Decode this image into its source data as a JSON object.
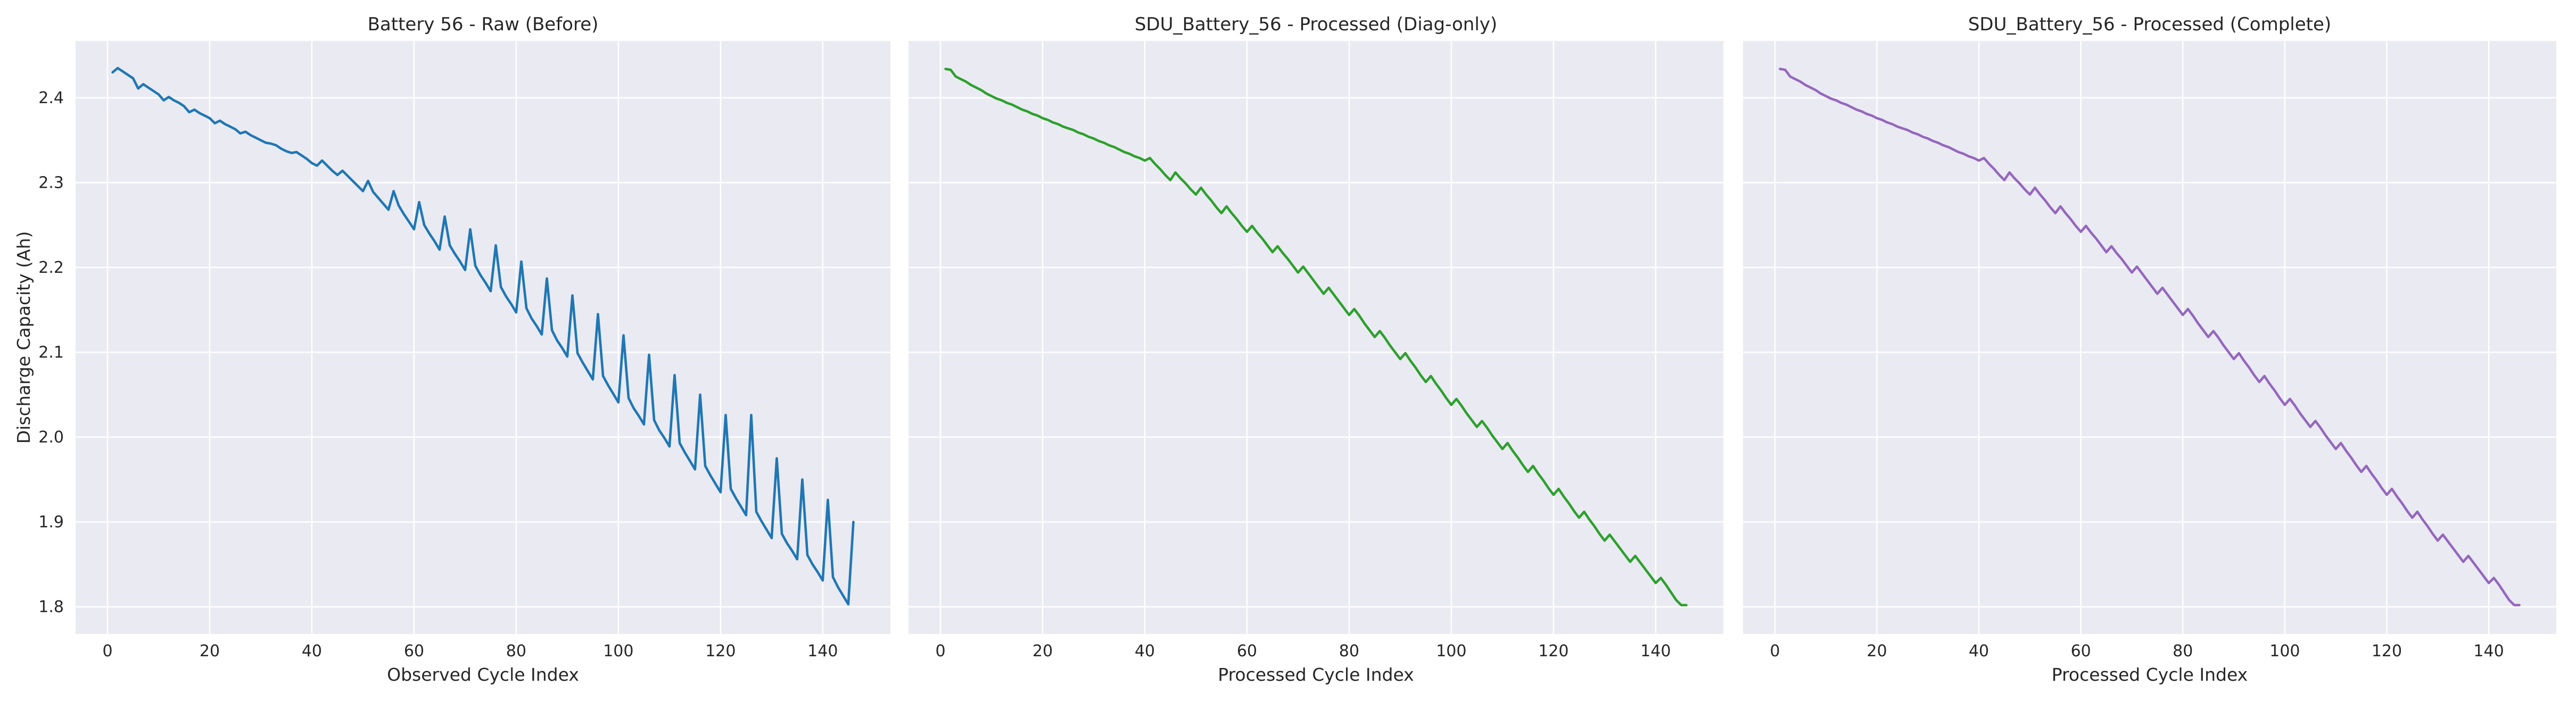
{
  "chart_data": [
    {
      "type": "line",
      "title": "Battery 56 - Raw (Before)",
      "xlabel": "Observed Cycle Index",
      "ylabel": "Discharge Capacity (Ah)",
      "color": "#1f77b4",
      "grid": true,
      "xlim": [
        -6.25,
        153.25
      ],
      "xticks": [
        0,
        20,
        40,
        60,
        80,
        100,
        120,
        140
      ],
      "ylim": [
        1.768,
        2.467
      ],
      "yticks": [
        1.8,
        1.9,
        {
          "value": 2.0,
          "label": "2.0"
        },
        2.1,
        2.2,
        2.3,
        2.4
      ],
      "x": [
        1,
        2,
        3,
        4,
        5,
        6,
        7,
        8,
        9,
        10,
        11,
        12,
        13,
        14,
        15,
        16,
        17,
        18,
        19,
        20,
        21,
        22,
        23,
        24,
        25,
        26,
        27,
        28,
        29,
        30,
        31,
        32,
        33,
        34,
        35,
        36,
        37,
        38,
        39,
        40,
        41,
        42,
        43,
        44,
        45,
        46,
        47,
        48,
        49,
        50,
        51,
        52,
        53,
        54,
        55,
        56,
        57,
        58,
        59,
        60,
        61,
        62,
        63,
        64,
        65,
        66,
        67,
        68,
        69,
        70,
        71,
        72,
        73,
        74,
        75,
        76,
        77,
        78,
        79,
        80,
        81,
        82,
        83,
        84,
        85,
        86,
        87,
        88,
        89,
        90,
        91,
        92,
        93,
        94,
        95,
        96,
        97,
        98,
        99,
        100,
        101,
        102,
        103,
        104,
        105,
        106,
        107,
        108,
        109,
        110,
        111,
        112,
        113,
        114,
        115,
        116,
        117,
        118,
        119,
        120,
        121,
        122,
        123,
        124,
        125,
        126,
        127,
        128,
        129,
        130,
        131,
        132,
        133,
        134,
        135,
        136,
        137,
        138,
        139,
        140,
        141,
        142,
        143,
        144,
        145,
        146
      ],
      "values": [
        2.43,
        2.435,
        2.431,
        2.427,
        2.423,
        2.411,
        2.416,
        2.412,
        2.408,
        2.404,
        2.397,
        2.401,
        2.397,
        2.394,
        2.39,
        2.383,
        2.386,
        2.382,
        2.379,
        2.376,
        2.37,
        2.373,
        2.369,
        2.366,
        2.363,
        2.358,
        2.36,
        2.356,
        2.353,
        2.35,
        2.347,
        2.346,
        2.344,
        2.34,
        2.337,
        2.335,
        2.336,
        2.332,
        2.328,
        2.323,
        2.32,
        2.326,
        2.32,
        2.314,
        2.309,
        2.314,
        2.308,
        2.302,
        2.296,
        2.29,
        2.302,
        2.289,
        2.282,
        2.275,
        2.268,
        2.29,
        2.273,
        2.263,
        2.254,
        2.245,
        2.277,
        2.25,
        2.24,
        2.231,
        2.221,
        2.26,
        2.226,
        2.216,
        2.207,
        2.197,
        2.245,
        2.202,
        2.191,
        2.182,
        2.172,
        2.226,
        2.177,
        2.166,
        2.157,
        2.147,
        2.207,
        2.152,
        2.14,
        2.131,
        2.121,
        2.187,
        2.126,
        2.114,
        2.105,
        2.095,
        2.167,
        2.099,
        2.088,
        2.078,
        2.068,
        2.145,
        2.072,
        2.061,
        2.051,
        2.041,
        2.12,
        2.046,
        2.034,
        2.025,
        2.015,
        2.097,
        2.02,
        2.008,
        1.999,
        1.989,
        2.073,
        1.993,
        1.982,
        1.972,
        1.962,
        2.05,
        1.966,
        1.955,
        1.945,
        1.935,
        2.026,
        1.939,
        1.928,
        1.918,
        1.908,
        2.026,
        1.912,
        1.901,
        1.891,
        1.881,
        1.975,
        1.886,
        1.875,
        1.866,
        1.856,
        1.95,
        1.861,
        1.85,
        1.841,
        1.831,
        1.926,
        1.835,
        1.823,
        1.813,
        1.803,
        1.9
      ]
    },
    {
      "type": "line",
      "title": "SDU_Battery_56 - Processed (Diag-only)",
      "xlabel": "Processed Cycle Index",
      "color": "#2ca02c",
      "grid": true,
      "xlim": [
        -6.25,
        153.25
      ],
      "xticks": [
        0,
        20,
        40,
        60,
        80,
        100,
        120,
        140
      ],
      "ylim": [
        1.768,
        2.467
      ],
      "yticks": [
        1.8,
        1.9,
        2.0,
        2.1,
        2.2,
        2.3,
        2.4
      ],
      "x": [
        1,
        2,
        3,
        4,
        5,
        6,
        7,
        8,
        9,
        10,
        11,
        12,
        13,
        14,
        15,
        16,
        17,
        18,
        19,
        20,
        21,
        22,
        23,
        24,
        25,
        26,
        27,
        28,
        29,
        30,
        31,
        32,
        33,
        34,
        35,
        36,
        37,
        38,
        39,
        40,
        41,
        42,
        43,
        44,
        45,
        46,
        47,
        48,
        49,
        50,
        51,
        52,
        53,
        54,
        55,
        56,
        57,
        58,
        59,
        60,
        61,
        62,
        63,
        64,
        65,
        66,
        67,
        68,
        69,
        70,
        71,
        72,
        73,
        74,
        75,
        76,
        77,
        78,
        79,
        80,
        81,
        82,
        83,
        84,
        85,
        86,
        87,
        88,
        89,
        90,
        91,
        92,
        93,
        94,
        95,
        96,
        97,
        98,
        99,
        100,
        101,
        102,
        103,
        104,
        105,
        106,
        107,
        108,
        109,
        110,
        111,
        112,
        113,
        114,
        115,
        116,
        117,
        118,
        119,
        120,
        121,
        122,
        123,
        124,
        125,
        126,
        127,
        128,
        129,
        130,
        131,
        132,
        133,
        134,
        135,
        136,
        137,
        138,
        139,
        140,
        141,
        142,
        143,
        144,
        145,
        146
      ],
      "values": [
        2.434,
        2.433,
        2.425,
        2.422,
        2.419,
        2.415,
        2.412,
        2.409,
        2.405,
        2.402,
        2.399,
        2.397,
        2.394,
        2.392,
        2.389,
        2.386,
        2.384,
        2.381,
        2.379,
        2.376,
        2.374,
        2.371,
        2.369,
        2.366,
        2.364,
        2.362,
        2.359,
        2.357,
        2.354,
        2.352,
        2.349,
        2.347,
        2.344,
        2.342,
        2.339,
        2.336,
        2.334,
        2.331,
        2.329,
        2.326,
        2.329,
        2.322,
        2.316,
        2.309,
        2.303,
        2.312,
        2.305,
        2.299,
        2.292,
        2.286,
        2.294,
        2.286,
        2.279,
        2.271,
        2.264,
        2.272,
        2.264,
        2.257,
        2.249,
        2.242,
        2.249,
        2.241,
        2.234,
        2.226,
        2.218,
        2.225,
        2.217,
        2.21,
        2.202,
        2.194,
        2.201,
        2.193,
        2.185,
        2.177,
        2.169,
        2.176,
        2.168,
        2.16,
        2.152,
        2.144,
        2.151,
        2.143,
        2.134,
        2.126,
        2.118,
        2.125,
        2.117,
        2.108,
        2.1,
        2.092,
        2.099,
        2.09,
        2.082,
        2.073,
        2.065,
        2.072,
        2.063,
        2.055,
        2.046,
        2.038,
        2.045,
        2.037,
        2.028,
        2.02,
        2.012,
        2.019,
        2.011,
        2.002,
        1.994,
        1.986,
        1.993,
        1.984,
        1.976,
        1.967,
        1.959,
        1.966,
        1.957,
        1.949,
        1.94,
        1.932,
        1.939,
        1.93,
        1.922,
        1.913,
        1.905,
        1.912,
        1.903,
        1.895,
        1.886,
        1.878,
        1.885,
        1.877,
        1.869,
        1.861,
        1.853,
        1.86,
        1.852,
        1.844,
        1.836,
        1.828,
        1.834,
        1.826,
        1.817,
        1.808,
        1.802,
        1.802
      ]
    },
    {
      "type": "line",
      "title": "SDU_Battery_56 - Processed (Complete)",
      "xlabel": "Processed Cycle Index",
      "color": "#9467bd",
      "grid": true,
      "xlim": [
        -6.25,
        153.25
      ],
      "xticks": [
        0,
        20,
        40,
        60,
        80,
        100,
        120,
        140
      ],
      "ylim": [
        1.768,
        2.467
      ],
      "yticks": [
        1.8,
        1.9,
        2.0,
        2.1,
        2.2,
        2.3,
        2.4
      ],
      "x": [
        1,
        2,
        3,
        4,
        5,
        6,
        7,
        8,
        9,
        10,
        11,
        12,
        13,
        14,
        15,
        16,
        17,
        18,
        19,
        20,
        21,
        22,
        23,
        24,
        25,
        26,
        27,
        28,
        29,
        30,
        31,
        32,
        33,
        34,
        35,
        36,
        37,
        38,
        39,
        40,
        41,
        42,
        43,
        44,
        45,
        46,
        47,
        48,
        49,
        50,
        51,
        52,
        53,
        54,
        55,
        56,
        57,
        58,
        59,
        60,
        61,
        62,
        63,
        64,
        65,
        66,
        67,
        68,
        69,
        70,
        71,
        72,
        73,
        74,
        75,
        76,
        77,
        78,
        79,
        80,
        81,
        82,
        83,
        84,
        85,
        86,
        87,
        88,
        89,
        90,
        91,
        92,
        93,
        94,
        95,
        96,
        97,
        98,
        99,
        100,
        101,
        102,
        103,
        104,
        105,
        106,
        107,
        108,
        109,
        110,
        111,
        112,
        113,
        114,
        115,
        116,
        117,
        118,
        119,
        120,
        121,
        122,
        123,
        124,
        125,
        126,
        127,
        128,
        129,
        130,
        131,
        132,
        133,
        134,
        135,
        136,
        137,
        138,
        139,
        140,
        141,
        142,
        143,
        144,
        145,
        146
      ],
      "values": [
        2.434,
        2.433,
        2.425,
        2.422,
        2.419,
        2.415,
        2.412,
        2.409,
        2.405,
        2.402,
        2.399,
        2.397,
        2.394,
        2.392,
        2.389,
        2.386,
        2.384,
        2.381,
        2.379,
        2.376,
        2.374,
        2.371,
        2.369,
        2.366,
        2.364,
        2.362,
        2.359,
        2.357,
        2.354,
        2.352,
        2.349,
        2.347,
        2.344,
        2.342,
        2.339,
        2.336,
        2.334,
        2.331,
        2.329,
        2.326,
        2.329,
        2.322,
        2.316,
        2.309,
        2.303,
        2.312,
        2.305,
        2.299,
        2.292,
        2.286,
        2.294,
        2.286,
        2.279,
        2.271,
        2.264,
        2.272,
        2.264,
        2.257,
        2.249,
        2.242,
        2.249,
        2.241,
        2.234,
        2.226,
        2.218,
        2.225,
        2.217,
        2.21,
        2.202,
        2.194,
        2.201,
        2.193,
        2.185,
        2.177,
        2.169,
        2.176,
        2.168,
        2.16,
        2.152,
        2.144,
        2.151,
        2.143,
        2.134,
        2.126,
        2.118,
        2.125,
        2.117,
        2.108,
        2.1,
        2.092,
        2.099,
        2.09,
        2.082,
        2.073,
        2.065,
        2.072,
        2.063,
        2.055,
        2.046,
        2.038,
        2.045,
        2.037,
        2.028,
        2.02,
        2.012,
        2.019,
        2.011,
        2.002,
        1.994,
        1.986,
        1.993,
        1.984,
        1.976,
        1.967,
        1.959,
        1.966,
        1.957,
        1.949,
        1.94,
        1.932,
        1.939,
        1.93,
        1.922,
        1.913,
        1.905,
        1.912,
        1.903,
        1.895,
        1.886,
        1.878,
        1.885,
        1.877,
        1.869,
        1.861,
        1.853,
        1.86,
        1.852,
        1.844,
        1.836,
        1.828,
        1.834,
        1.826,
        1.817,
        1.808,
        1.802,
        1.802
      ]
    }
  ]
}
